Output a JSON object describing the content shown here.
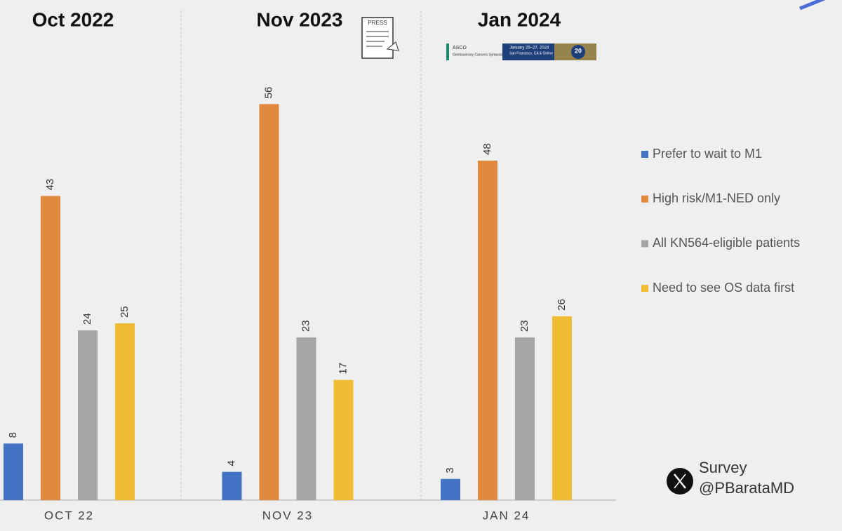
{
  "chart_data": {
    "type": "bar",
    "group_titles": [
      "Oct 2022",
      "Nov 2023",
      "Jan 2024"
    ],
    "categories": [
      "OCT 22",
      "NOV 23",
      "JAN 24"
    ],
    "series": [
      {
        "name": "Prefer to wait to M1",
        "color": "#4472c4",
        "values": [
          8,
          4,
          3
        ]
      },
      {
        "name": "High risk/M1-NED only",
        "color": "#e0893f",
        "values": [
          43,
          56,
          48
        ]
      },
      {
        "name": "All KN564-eligible patients",
        "color": "#a5a5a5",
        "values": [
          24,
          23,
          23
        ]
      },
      {
        "name": "Need to see OS data first",
        "color": "#efbc34",
        "values": [
          25,
          17,
          26
        ]
      }
    ],
    "ylim": [
      0,
      60
    ],
    "legend": "right"
  },
  "press_icon": {
    "label": "PRESS"
  },
  "banner": {
    "org": "ASCO",
    "name": "Genitourinary Cancers Symposium",
    "dates": "January 25–27, 2024",
    "place": "San Francisco, CA & Online",
    "badge": "20"
  },
  "credit": {
    "line1": "Survey",
    "line2": "@PBarataMD"
  }
}
